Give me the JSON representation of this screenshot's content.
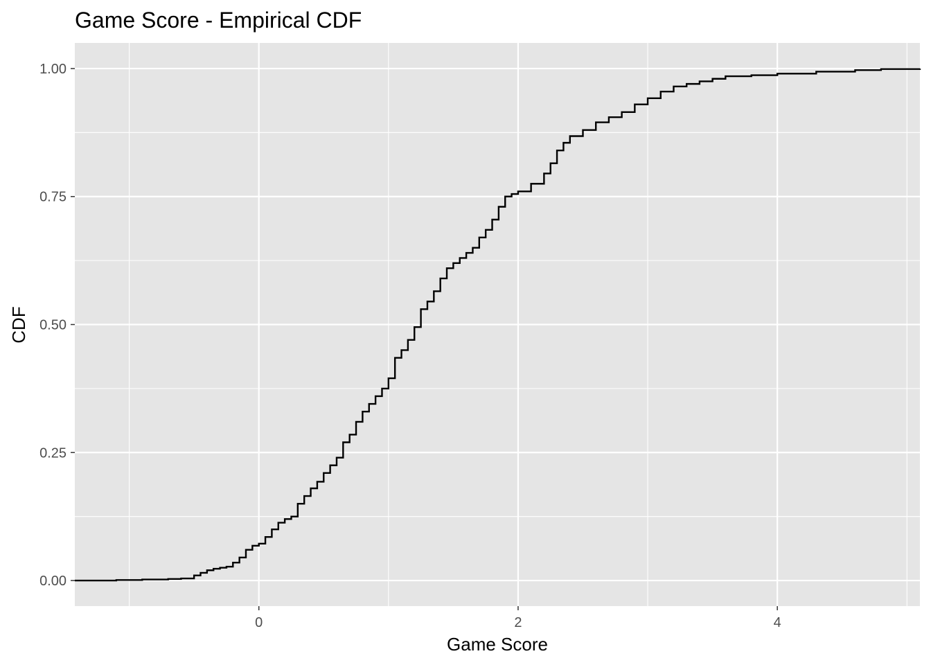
{
  "chart_data": {
    "type": "line",
    "title": "Game Score - Empirical CDF",
    "xlabel": "Game Score",
    "ylabel": "CDF",
    "xlim": [
      -1.42,
      5.1
    ],
    "ylim": [
      -0.05,
      1.05
    ],
    "x_ticks": [
      0,
      2,
      4
    ],
    "x_tick_labels": [
      "0",
      "2",
      "4"
    ],
    "y_ticks": [
      0,
      0.25,
      0.5,
      0.75,
      1
    ],
    "y_tick_labels": [
      "0.00",
      "0.25",
      "0.50",
      "0.75",
      "1.00"
    ],
    "grid": true,
    "series": [
      {
        "color": "#000000",
        "x": [
          -1.42,
          -1.1,
          -0.9,
          -0.7,
          -0.6,
          -0.5,
          -0.45,
          -0.4,
          -0.35,
          -0.3,
          -0.25,
          -0.2,
          -0.15,
          -0.1,
          -0.05,
          0.0,
          0.05,
          0.1,
          0.15,
          0.2,
          0.25,
          0.3,
          0.35,
          0.4,
          0.45,
          0.5,
          0.55,
          0.6,
          0.65,
          0.7,
          0.75,
          0.8,
          0.85,
          0.9,
          0.95,
          1.0,
          1.05,
          1.1,
          1.15,
          1.2,
          1.25,
          1.3,
          1.35,
          1.4,
          1.45,
          1.5,
          1.55,
          1.6,
          1.65,
          1.7,
          1.75,
          1.8,
          1.85,
          1.9,
          1.95,
          2.0,
          2.1,
          2.2,
          2.25,
          2.3,
          2.35,
          2.4,
          2.5,
          2.6,
          2.7,
          2.8,
          2.9,
          3.0,
          3.1,
          3.2,
          3.3,
          3.4,
          3.5,
          3.6,
          3.8,
          4.0,
          4.3,
          4.6,
          4.8,
          5.1
        ],
        "y": [
          0,
          0.001,
          0.002,
          0.003,
          0.004,
          0.01,
          0.015,
          0.02,
          0.023,
          0.025,
          0.027,
          0.035,
          0.045,
          0.06,
          0.068,
          0.072,
          0.085,
          0.1,
          0.113,
          0.12,
          0.125,
          0.15,
          0.165,
          0.18,
          0.193,
          0.21,
          0.225,
          0.24,
          0.27,
          0.285,
          0.31,
          0.33,
          0.345,
          0.36,
          0.375,
          0.395,
          0.435,
          0.45,
          0.47,
          0.495,
          0.53,
          0.545,
          0.565,
          0.59,
          0.61,
          0.62,
          0.63,
          0.64,
          0.65,
          0.67,
          0.685,
          0.705,
          0.73,
          0.75,
          0.755,
          0.76,
          0.775,
          0.795,
          0.815,
          0.84,
          0.855,
          0.868,
          0.88,
          0.895,
          0.905,
          0.915,
          0.93,
          0.942,
          0.955,
          0.965,
          0.97,
          0.975,
          0.98,
          0.985,
          0.987,
          0.99,
          0.994,
          0.997,
          0.999,
          1.0
        ]
      }
    ]
  }
}
